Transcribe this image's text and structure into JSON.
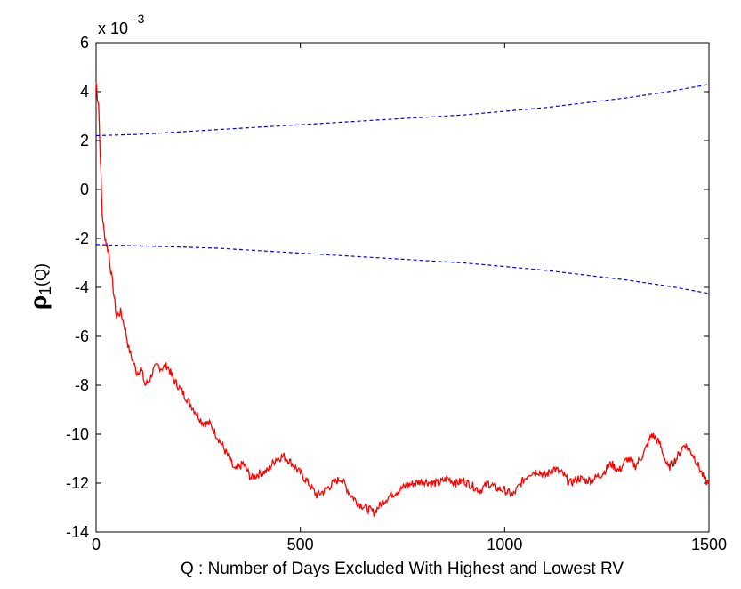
{
  "chart_data": {
    "type": "line",
    "xlabel": "Q : Number of Days Excluded With Highest and Lowest RV",
    "ylabel": {
      "symbol": "ρ",
      "subscript": "1",
      "argument": "(Q)"
    },
    "y_scale_note": {
      "base": "x 10",
      "exponent": "-3"
    },
    "xlim": [
      0,
      1500
    ],
    "ylim": [
      -14,
      6
    ],
    "x_ticks": [
      "0",
      "500",
      "1000",
      "1500"
    ],
    "y_ticks": [
      "-14",
      "-12",
      "-10",
      "-8",
      "-6",
      "-4",
      "-2",
      "0",
      "2",
      "4",
      "6"
    ],
    "grid": false,
    "series": [
      {
        "color": "#ff0000",
        "style": "solid",
        "x": [
          0,
          3,
          6,
          10,
          15,
          20,
          25,
          30,
          40,
          50,
          60,
          70,
          80,
          90,
          100,
          110,
          120,
          130,
          140,
          150,
          160,
          175,
          190,
          200,
          220,
          240,
          260,
          280,
          300,
          320,
          340,
          360,
          380,
          400,
          420,
          440,
          460,
          480,
          500,
          520,
          540,
          560,
          580,
          600,
          620,
          640,
          660,
          680,
          700,
          720,
          740,
          760,
          780,
          800,
          820,
          840,
          860,
          880,
          900,
          920,
          940,
          960,
          980,
          1000,
          1020,
          1040,
          1060,
          1080,
          1100,
          1120,
          1140,
          1160,
          1180,
          1200,
          1220,
          1240,
          1260,
          1280,
          1300,
          1320,
          1340,
          1360,
          1380,
          1400,
          1420,
          1440,
          1460,
          1480,
          1490,
          1500
        ],
        "y": [
          4.4,
          3.8,
          3.5,
          1.5,
          -1.0,
          -1.8,
          -2.2,
          -2.5,
          -3.8,
          -5.2,
          -5.0,
          -5.6,
          -6.5,
          -7.0,
          -7.5,
          -7.3,
          -8.0,
          -7.8,
          -7.4,
          -7.2,
          -7.3,
          -7.2,
          -7.8,
          -8.0,
          -8.5,
          -9.0,
          -9.5,
          -9.6,
          -10.2,
          -10.8,
          -11.5,
          -11.2,
          -11.8,
          -11.6,
          -11.5,
          -11.0,
          -10.9,
          -11.2,
          -11.6,
          -12.0,
          -12.5,
          -12.3,
          -12.0,
          -11.8,
          -12.4,
          -12.8,
          -13.0,
          -13.2,
          -12.8,
          -12.5,
          -12.3,
          -12.1,
          -12.0,
          -11.9,
          -12.0,
          -12.0,
          -11.8,
          -12.0,
          -11.9,
          -12.1,
          -12.3,
          -12.0,
          -12.2,
          -12.3,
          -12.5,
          -12.0,
          -11.6,
          -11.5,
          -11.7,
          -11.4,
          -11.6,
          -12.0,
          -11.8,
          -11.9,
          -11.8,
          -11.6,
          -11.2,
          -11.5,
          -11.0,
          -11.3,
          -10.8,
          -10.0,
          -10.4,
          -11.4,
          -11.0,
          -10.4,
          -10.8,
          -11.5,
          -11.9,
          -12.0
        ]
      },
      {
        "color": "#0000ff",
        "style": "dashed",
        "x": [
          0,
          100,
          200,
          300,
          400,
          500,
          600,
          700,
          800,
          900,
          1000,
          1100,
          1200,
          1300,
          1400,
          1500
        ],
        "y": [
          2.2,
          2.25,
          2.35,
          2.45,
          2.55,
          2.65,
          2.75,
          2.85,
          2.95,
          3.05,
          3.2,
          3.35,
          3.55,
          3.75,
          4.0,
          4.3
        ]
      },
      {
        "color": "#0000ff",
        "style": "dashed",
        "x": [
          0,
          100,
          200,
          300,
          400,
          500,
          600,
          700,
          800,
          900,
          1000,
          1100,
          1200,
          1300,
          1400,
          1500
        ],
        "y": [
          -2.25,
          -2.3,
          -2.35,
          -2.4,
          -2.5,
          -2.6,
          -2.7,
          -2.8,
          -2.9,
          -3.0,
          -3.15,
          -3.3,
          -3.5,
          -3.7,
          -3.95,
          -4.25
        ]
      }
    ]
  }
}
